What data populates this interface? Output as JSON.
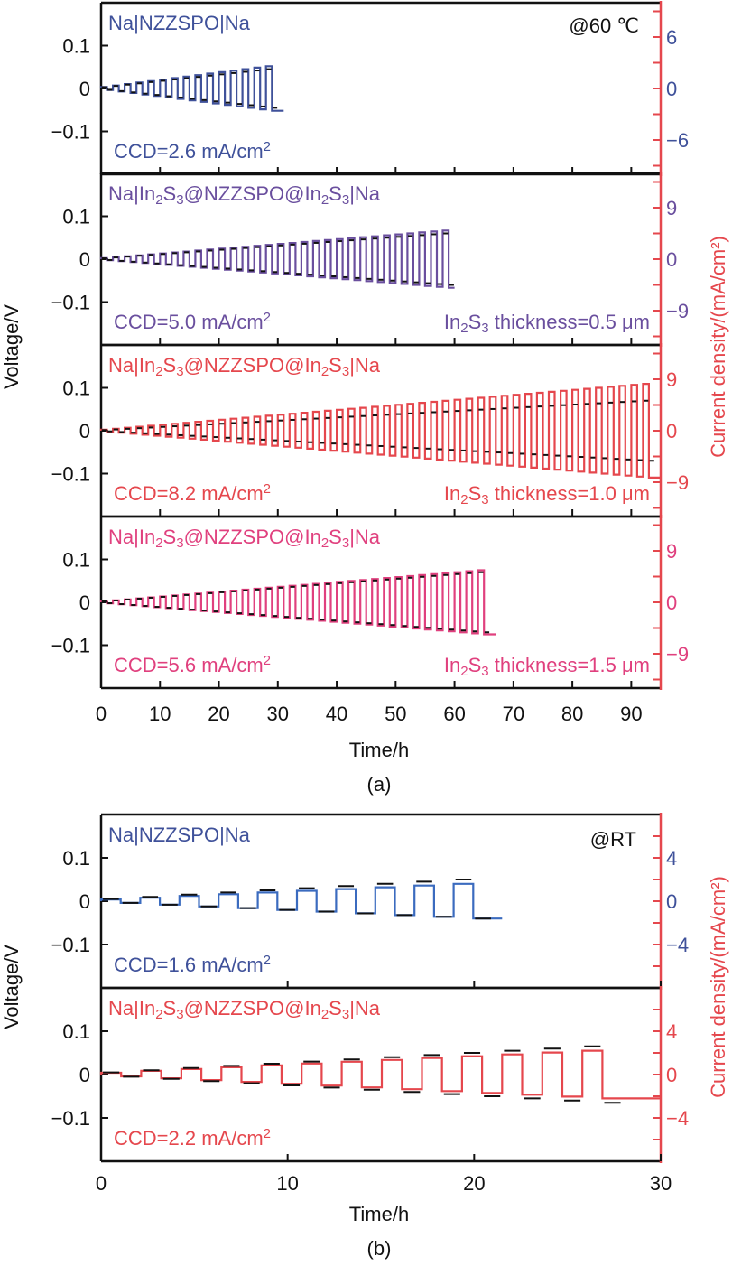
{
  "colors": {
    "blue": "#3f519a",
    "purple": "#6a4f9e",
    "red": "#e5474d",
    "pink": "#e0407e",
    "axis_right": "#e5474d",
    "black": "#111111",
    "blue_line": "#3b6bbf"
  },
  "chart_data": [
    {
      "type": "line",
      "panel": "a",
      "caption": "(a)",
      "condition": "@60 ℃",
      "xlabel": "Time/h",
      "ylabel_left": "Voltage/V",
      "ylabel_right": "Current density/(mA/cm²)",
      "xlim": [
        0,
        95
      ],
      "x_ticks": [
        0,
        10,
        20,
        30,
        40,
        50,
        60,
        70,
        80,
        90
      ],
      "subplots": [
        {
          "label": "Na|NZZSPO|Na",
          "color": "#3f519a",
          "ccd_text": "CCD=2.6 mA/cm²",
          "thickness_text": "",
          "ylim_left": [
            -0.2,
            0.2
          ],
          "y_ticks_left": [
            0.1,
            0,
            -0.1
          ],
          "y_ticks_left_labels": [
            "0.1",
            "0",
            "−0.1"
          ],
          "ylim_right": [
            -10,
            10
          ],
          "y_ticks_right": [
            6,
            0,
            -6
          ],
          "y_ticks_right_labels": [
            "6",
            "0",
            "−6"
          ],
          "current_step_mA_cm2": 0.2,
          "cycle_hours": 2,
          "end_time_h": 31,
          "max_voltage_V": 0.045,
          "min_voltage_V": -0.045
        },
        {
          "label": "Na|In₂S₃@NZZSPO@In₂S₃|Na",
          "color": "#6a4f9e",
          "ccd_text": "CCD=5.0 mA/cm²",
          "thickness_text": "In₂S₃ thickness=0.5 μm",
          "ylim_left": [
            -0.2,
            0.2
          ],
          "y_ticks_left": [
            0.1,
            0,
            -0.1
          ],
          "y_ticks_left_labels": [
            "0.1",
            "0",
            "−0.1"
          ],
          "ylim_right": [
            -15,
            15
          ],
          "y_ticks_right": [
            9,
            0,
            -9
          ],
          "y_ticks_right_labels": [
            "9",
            "0",
            "−9"
          ],
          "current_step_mA_cm2": 0.2,
          "cycle_hours": 2,
          "end_time_h": 60,
          "max_voltage_V": 0.06,
          "min_voltage_V": -0.06
        },
        {
          "label": "Na|In₂S₃@NZZSPO@In₂S₃|Na",
          "color": "#e5474d",
          "ccd_text": "CCD=8.2 mA/cm²",
          "thickness_text": "In₂S₃ thickness=1.0 μm",
          "ylim_left": [
            -0.2,
            0.2
          ],
          "y_ticks_left": [
            0.1,
            0,
            -0.1
          ],
          "y_ticks_left_labels": [
            "0.1",
            "0",
            "−0.1"
          ],
          "ylim_right": [
            -15,
            15
          ],
          "y_ticks_right": [
            9,
            0,
            -9
          ],
          "y_ticks_right_labels": [
            "9",
            "0",
            "−9"
          ],
          "current_step_mA_cm2": 0.2,
          "cycle_hours": 2,
          "end_time_h": 95,
          "max_voltage_V": 0.07,
          "min_voltage_V": -0.07
        },
        {
          "label": "Na|In₂S₃@NZZSPO@In₂S₃|Na",
          "color": "#e0407e",
          "ccd_text": "CCD=5.6 mA/cm²",
          "thickness_text": "In₂S₃ thickness=1.5 μm",
          "ylim_left": [
            -0.2,
            0.2
          ],
          "y_ticks_left": [
            0.1,
            0,
            -0.1
          ],
          "y_ticks_left_labels": [
            "0.1",
            "0",
            "−0.1"
          ],
          "ylim_right": [
            -15,
            15
          ],
          "y_ticks_right": [
            9,
            0,
            -9
          ],
          "y_ticks_right_labels": [
            "9",
            "0",
            "−9"
          ],
          "current_step_mA_cm2": 0.2,
          "cycle_hours": 2,
          "end_time_h": 67,
          "max_voltage_V": 0.07,
          "min_voltage_V": -0.07
        }
      ]
    },
    {
      "type": "line",
      "panel": "b",
      "caption": "(b)",
      "condition": "@RT",
      "xlabel": "Time/h",
      "ylabel_left": "Voltage/V",
      "ylabel_right": "Current density/(mA/cm²)",
      "xlim": [
        0,
        30
      ],
      "x_ticks": [
        0,
        10,
        20,
        30
      ],
      "subplots": [
        {
          "label": "Na|NZZSPO|Na",
          "color": "#3f519a",
          "ccd_text": "CCD=1.6 mA/cm²",
          "thickness_text": "",
          "ylim_left": [
            -0.2,
            0.2
          ],
          "y_ticks_left": [
            0.1,
            0,
            -0.1
          ],
          "y_ticks_left_labels": [
            "0.1",
            "0",
            "−0.1"
          ],
          "ylim_right": [
            -8,
            8
          ],
          "y_ticks_right": [
            4,
            0,
            -4
          ],
          "y_ticks_right_labels": [
            "4",
            "0",
            "−4"
          ],
          "current_step_mA_cm2": 0.2,
          "cycle_hours": 2.1,
          "end_time_h": 21.5,
          "max_voltage_V": 0.05,
          "min_voltage_V": -0.04
        },
        {
          "label": "Na|In₂S₃@NZZSPO@In₂S₃|Na",
          "color": "#e5474d",
          "ccd_text": "CCD=2.2 mA/cm²",
          "thickness_text": "",
          "ylim_left": [
            -0.2,
            0.2
          ],
          "y_ticks_left": [
            0.1,
            0,
            -0.1
          ],
          "y_ticks_left_labels": [
            "0.1",
            "0",
            "−0.1"
          ],
          "ylim_right": [
            -8,
            8
          ],
          "y_ticks_right": [
            4,
            0,
            -4
          ],
          "y_ticks_right_labels": [
            "4",
            "0",
            "−4"
          ],
          "current_step_mA_cm2": 0.2,
          "cycle_hours": 2.15,
          "end_time_h": 30,
          "max_voltage_V": 0.065,
          "min_voltage_V": -0.065
        }
      ]
    }
  ]
}
